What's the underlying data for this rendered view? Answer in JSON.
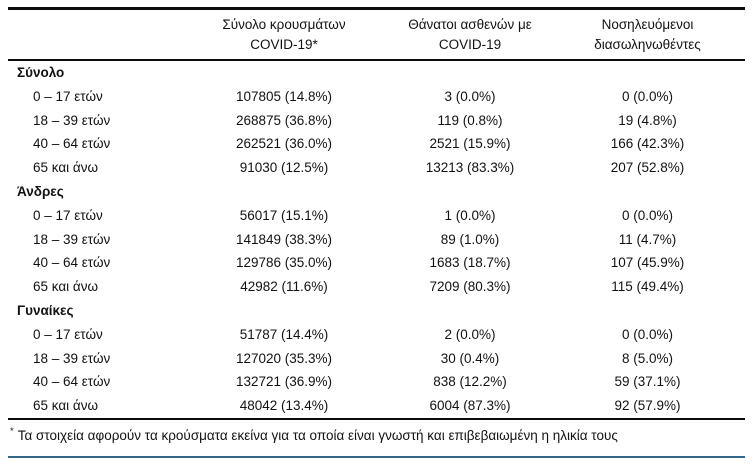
{
  "table": {
    "columns": [
      {
        "line1": "Σύνολο κρουσμάτων",
        "line2": "COVID-19*"
      },
      {
        "line1": "Θάνατοι ασθενών με",
        "line2": "COVID-19"
      },
      {
        "line1": "Νοσηλευόμενοι",
        "line2": "διασωληνωθέντες"
      }
    ],
    "sections": [
      {
        "label": "Σύνολο",
        "rows": [
          {
            "age": "0 – 17 ετών",
            "cases": "107805 (14.8%)",
            "deaths": "3 (0.0%)",
            "intubated": "0 (0.0%)"
          },
          {
            "age": "18 – 39 ετών",
            "cases": "268875 (36.8%)",
            "deaths": "119 (0.8%)",
            "intubated": "19 (4.8%)"
          },
          {
            "age": "40 – 64 ετών",
            "cases": "262521 (36.0%)",
            "deaths": "2521 (15.9%)",
            "intubated": "166 (42.3%)"
          },
          {
            "age": "65 και άνω",
            "cases": "91030 (12.5%)",
            "deaths": "13213 (83.3%)",
            "intubated": "207 (52.8%)"
          }
        ]
      },
      {
        "label": "Άνδρες",
        "rows": [
          {
            "age": "0 – 17 ετών",
            "cases": "56017 (15.1%)",
            "deaths": "1 (0.0%)",
            "intubated": "0 (0.0%)"
          },
          {
            "age": "18 – 39 ετών",
            "cases": "141849 (38.3%)",
            "deaths": "89 (1.0%)",
            "intubated": "11 (4.7%)"
          },
          {
            "age": "40 – 64 ετών",
            "cases": "129786 (35.0%)",
            "deaths": "1683 (18.7%)",
            "intubated": "107 (45.9%)"
          },
          {
            "age": "65 και άνω",
            "cases": "42982 (11.6%)",
            "deaths": "7209 (80.3%)",
            "intubated": "115 (49.4%)"
          }
        ]
      },
      {
        "label": "Γυναίκες",
        "rows": [
          {
            "age": "0 – 17 ετών",
            "cases": "51787 (14.4%)",
            "deaths": "2 (0.0%)",
            "intubated": "0 (0.0%)"
          },
          {
            "age": "18 – 39 ετών",
            "cases": "127020 (35.3%)",
            "deaths": "30 (0.4%)",
            "intubated": "8 (5.0%)"
          },
          {
            "age": "40 – 64 ετών",
            "cases": "132721 (36.9%)",
            "deaths": "838 (12.2%)",
            "intubated": "59 (37.1%)"
          },
          {
            "age": "65 και άνω",
            "cases": "48042 (13.4%)",
            "deaths": "6004 (87.3%)",
            "intubated": "92 (57.9%)"
          }
        ]
      }
    ]
  },
  "footnote": {
    "marker": "*",
    "text": "Τα στοιχεία αφορούν τα κρούσματα εκείνα για τα οποία είναι γνωστή και επιβεβαιωμένη η ηλικία τους"
  },
  "colors": {
    "rule_black": "#0b0b0b",
    "footer_rule_blue": "#336688",
    "text": "#121212",
    "background": "#ffffff"
  }
}
